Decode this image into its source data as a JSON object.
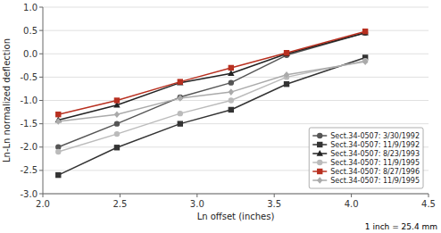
{
  "chart_data": {
    "type": "line",
    "xlabel": "Ln offset (inches)",
    "ylabel": "Ln-Ln normalized deflection",
    "annotations": [
      "1 inch = 25.4 mm"
    ],
    "x": [
      2.1,
      2.48,
      2.89,
      3.22,
      3.58,
      4.09
    ],
    "series": [
      {
        "name": "Sect.34-0507: 3/30/1992",
        "color": "#555555",
        "marker": "circle",
        "values": [
          -2.0,
          -1.5,
          -0.93,
          -0.62,
          -0.03,
          0.45
        ]
      },
      {
        "name": "Sect.34-0507: 11/9/1992",
        "color": "#333333",
        "marker": "square",
        "values": [
          -2.6,
          -2.01,
          -1.5,
          -1.2,
          -0.65,
          -0.08
        ]
      },
      {
        "name": "Sect.34-0507: 8/23/1993",
        "color": "#222222",
        "marker": "triangle",
        "values": [
          -1.42,
          -1.1,
          -0.62,
          -0.42,
          0.0,
          0.45
        ]
      },
      {
        "name": "Sect.34-0507: 11/9/1995",
        "color": "#bbbbbb",
        "marker": "circle",
        "values": [
          -2.1,
          -1.72,
          -1.28,
          -1.0,
          -0.5,
          -0.15
        ]
      },
      {
        "name": "Sect.34-0507: 8/27/1996",
        "color": "#b83020",
        "marker": "square",
        "values": [
          -1.3,
          -1.0,
          -0.6,
          -0.3,
          0.02,
          0.48
        ]
      },
      {
        "name": "Sect.34-0507: 11/9/1995",
        "color": "#aaaaaa",
        "marker": "diamond",
        "values": [
          -1.45,
          -1.3,
          -0.95,
          -0.82,
          -0.45,
          -0.17
        ]
      }
    ],
    "xlim": [
      2,
      4.5
    ],
    "ylim": [
      -3,
      1
    ],
    "xticks": [
      {
        "value": 2,
        "label": "2.0"
      },
      2.5,
      {
        "value": 3,
        "label": "3.0"
      },
      3.5,
      {
        "value": 4,
        "label": "4.0"
      },
      4.5
    ],
    "yticks": [
      {
        "value": -3,
        "label": "-3.0"
      },
      -2.5,
      {
        "value": -2,
        "label": "-2.0"
      },
      -1.5,
      {
        "value": -1,
        "label": "-1.0"
      },
      -0.5,
      {
        "value": 0,
        "label": "0.0"
      },
      0.5,
      {
        "value": 1,
        "label": "1.0"
      }
    ],
    "grid": true,
    "legend": "lower right"
  }
}
